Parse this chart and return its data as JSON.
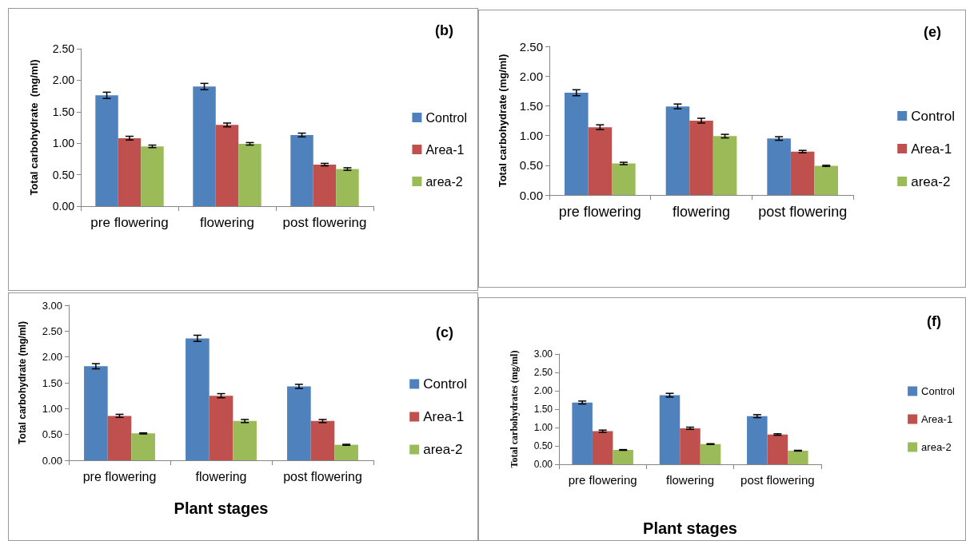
{
  "chart_data": [
    {
      "type": "bar",
      "ylabel": "Total carbohydrate  (mg/ml)",
      "annotations": [
        "(b)"
      ],
      "categories": [
        "pre flowering",
        "flowering",
        "post flowering"
      ],
      "ylim": [
        0,
        2.5
      ],
      "yticks": [
        {
          "value": 0,
          "label": "0.00"
        },
        {
          "value": 0.5,
          "label": "0.50"
        },
        {
          "value": 1,
          "label": "1.00"
        },
        {
          "value": 1.5,
          "label": "1.50"
        },
        {
          "value": 2,
          "label": "2.00"
        },
        {
          "value": 2.5,
          "label": "2.50"
        }
      ],
      "grid": false,
      "legend": "right",
      "series": [
        {
          "name": "Control",
          "color": "#4f81bd",
          "values": [
            1.76,
            1.9,
            1.13
          ],
          "errors": [
            0.05,
            0.05,
            0.03
          ]
        },
        {
          "name": "Area-1",
          "color": "#c0504d",
          "values": [
            1.08,
            1.29,
            0.66
          ],
          "errors": [
            0.03,
            0.03,
            0.02
          ]
        },
        {
          "name": "area-2",
          "color": "#9bbb59",
          "values": [
            0.95,
            0.99,
            0.59
          ],
          "errors": [
            0.02,
            0.02,
            0.02
          ]
        }
      ]
    },
    {
      "type": "bar",
      "ylabel": "Total carbohydrate (mg/ml)",
      "annotations": [
        "(e)"
      ],
      "categories": [
        "pre flowering",
        "flowering",
        "post flowering"
      ],
      "ylim": [
        0,
        2.5
      ],
      "yticks": [
        {
          "value": 0,
          "label": "0.00"
        },
        {
          "value": 0.5,
          "label": "0.50"
        },
        {
          "value": 1,
          "label": "1.00"
        },
        {
          "value": 1.5,
          "label": "1.50"
        },
        {
          "value": 2,
          "label": "2.00"
        },
        {
          "value": 2.5,
          "label": "2.50"
        }
      ],
      "grid": false,
      "legend": "right",
      "series": [
        {
          "name": "Control",
          "color": "#4f81bd",
          "values": [
            1.72,
            1.49,
            0.95
          ],
          "errors": [
            0.05,
            0.04,
            0.03
          ]
        },
        {
          "name": "Area-1",
          "color": "#c0504d",
          "values": [
            1.14,
            1.25,
            0.73
          ],
          "errors": [
            0.04,
            0.04,
            0.02
          ]
        },
        {
          "name": "area-2",
          "color": "#9bbb59",
          "values": [
            0.53,
            0.99,
            0.49
          ],
          "errors": [
            0.02,
            0.03,
            0.01
          ]
        }
      ]
    },
    {
      "type": "bar",
      "xlabel": "Plant stages",
      "ylabel": "Total carbohydrate (mg/ml)",
      "annotations": [
        "(c)"
      ],
      "categories": [
        "pre flowering",
        "flowering",
        "post flowering"
      ],
      "ylim": [
        0,
        3
      ],
      "yticks": [
        {
          "value": 0,
          "label": "0.00"
        },
        {
          "value": 0.5,
          "label": "0.50"
        },
        {
          "value": 1,
          "label": "1.00"
        },
        {
          "value": 1.5,
          "label": "1.50"
        },
        {
          "value": 2,
          "label": "2.00"
        },
        {
          "value": 2.5,
          "label": "2.50"
        },
        {
          "value": 3,
          "label": "3.00"
        }
      ],
      "grid": false,
      "legend": "right",
      "series": [
        {
          "name": "Control",
          "color": "#4f81bd",
          "values": [
            1.82,
            2.36,
            1.43
          ],
          "errors": [
            0.05,
            0.06,
            0.04
          ]
        },
        {
          "name": "Area-1",
          "color": "#c0504d",
          "values": [
            0.86,
            1.25,
            0.76
          ],
          "errors": [
            0.03,
            0.04,
            0.03
          ]
        },
        {
          "name": "area-2",
          "color": "#9bbb59",
          "values": [
            0.52,
            0.76,
            0.3
          ],
          "errors": [
            0.01,
            0.03,
            0.01
          ]
        }
      ]
    },
    {
      "type": "bar",
      "xlabel": "Plant stages",
      "ylabel": "Total carbohydrates (mg/ml)",
      "annotations": [
        "(f)"
      ],
      "categories": [
        "pre flowering",
        "flowering",
        "post flowering"
      ],
      "ylim": [
        0,
        3
      ],
      "yticks": [
        {
          "value": 0,
          "label": "0.00"
        },
        {
          "value": 0.5,
          "label": "0.50"
        },
        {
          "value": 1,
          "label": "1.00"
        },
        {
          "value": 1.5,
          "label": "1.50"
        },
        {
          "value": 2,
          "label": "2.00"
        },
        {
          "value": 2.5,
          "label": "2.50"
        },
        {
          "value": 3,
          "label": "3.00"
        }
      ],
      "grid": false,
      "legend": "right",
      "series": [
        {
          "name": "Control",
          "color": "#4f81bd",
          "values": [
            1.68,
            1.88,
            1.31
          ],
          "errors": [
            0.04,
            0.05,
            0.04
          ]
        },
        {
          "name": "Area-1",
          "color": "#c0504d",
          "values": [
            0.9,
            0.98,
            0.81
          ],
          "errors": [
            0.03,
            0.03,
            0.02
          ]
        },
        {
          "name": "area-2",
          "color": "#9bbb59",
          "values": [
            0.39,
            0.55,
            0.37
          ],
          "errors": [
            0.01,
            0.01,
            0.01
          ]
        }
      ]
    }
  ]
}
